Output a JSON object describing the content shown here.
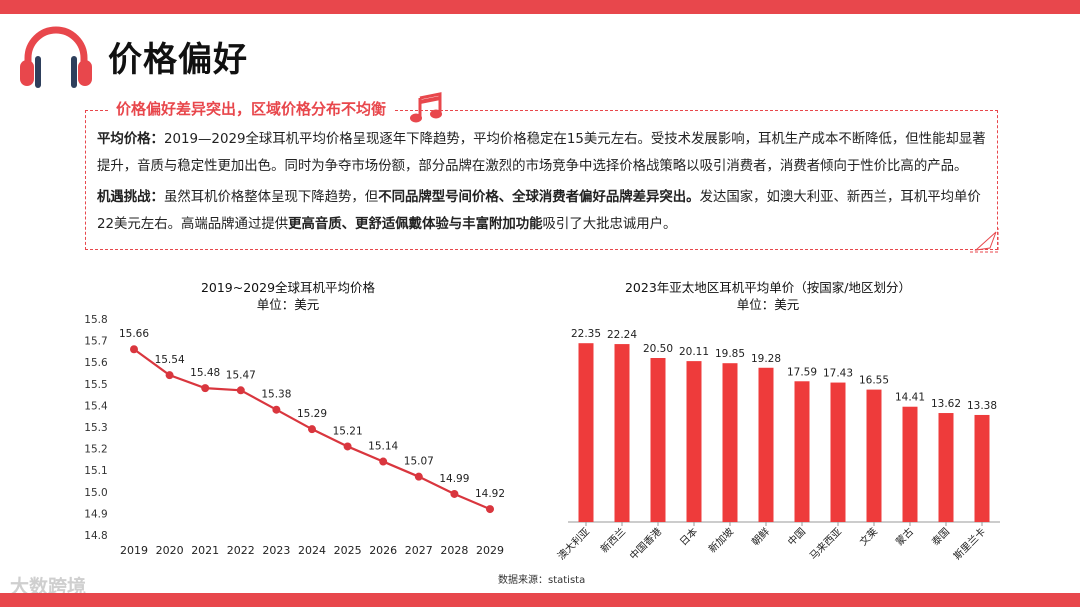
{
  "page": {
    "title": "价格偏好"
  },
  "brand": {
    "accent": "#e8474c",
    "line_color": "#d9363e",
    "bar_color": "#ee3b3b"
  },
  "icons": {
    "logo": "headphones-icon",
    "note": "music-note-icon"
  },
  "info": {
    "heading": "价格偏好差异突出，区域价格分布不均衡",
    "p1_label": "平均价格：",
    "p1_text": "2019—2029全球耳机平均价格呈现逐年下降趋势，平均价格稳定在15美元左右。受技术发展影响，耳机生产成本不断降低，但性能却显著提升，音质与稳定性更加出色。同时为争夺市场份额，部分品牌在激烈的市场竞争中选择价格战策略以吸引消费者，消费者倾向于性价比高的产品。",
    "p2_label": "机遇挑战：",
    "p2_a": "虽然耳机价格整体呈现下降趋势，但",
    "p2_b": "不同品牌型号间价格、全球消费者偏好品牌差异突出。",
    "p2_c": "发达国家，如澳大利亚、新西兰，耳机平均单价22美元左右。高端品牌通过提供",
    "p2_d": "更高音质、更舒适佩戴体验与丰富附加功能",
    "p2_e": "吸引了大批忠诚用户。"
  },
  "chart_data": [
    {
      "type": "line",
      "title": "2019~2029全球耳机平均价格",
      "subtitle": "单位：美元",
      "categories": [
        "2019",
        "2020",
        "2021",
        "2022",
        "2023",
        "2024",
        "2025",
        "2026",
        "2027",
        "2028",
        "2029"
      ],
      "values": [
        15.66,
        15.54,
        15.48,
        15.47,
        15.38,
        15.29,
        15.21,
        15.14,
        15.07,
        14.99,
        14.92
      ],
      "ylim": [
        14.8,
        15.8
      ],
      "yticks": [
        "14.8",
        "14.9",
        "15.0",
        "15.1",
        "15.2",
        "15.3",
        "15.4",
        "15.5",
        "15.6",
        "15.7",
        "15.8"
      ],
      "grid": false
    },
    {
      "type": "bar",
      "title": "2023年亚太地区耳机平均单价（按国家/地区划分）",
      "subtitle": "单位：美元",
      "categories": [
        "澳大利亚",
        "新西兰",
        "中国香港",
        "日本",
        "新加坡",
        "朝鲜",
        "中国",
        "马来西亚",
        "文莱",
        "蒙古",
        "泰国",
        "斯里兰卡"
      ],
      "values": [
        22.35,
        22.24,
        20.5,
        20.11,
        19.85,
        19.28,
        17.59,
        17.43,
        16.55,
        14.41,
        13.62,
        13.38
      ],
      "ylim": [
        0,
        24
      ],
      "grid": false
    }
  ],
  "footer": {
    "source": "数据来源：statista",
    "watermark": "大数跨境"
  }
}
